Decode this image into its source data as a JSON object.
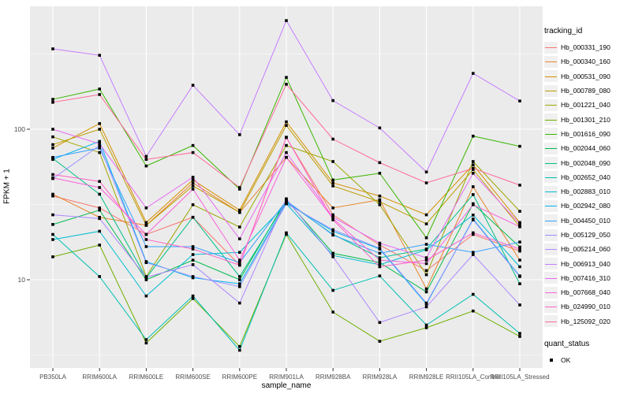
{
  "figure": {
    "background": "#FFFFFF",
    "panel_bg": "#EBEBEB",
    "grid_color": "#FFFFFF",
    "tick_text_color": "#4D4D4D",
    "tick_mark_color": "#333333",
    "point_color": "#000000"
  },
  "chart_data": {
    "type": "line",
    "title": "",
    "xlabel": "sample_name",
    "ylabel": "FPKM + 1",
    "y_scale": "log10",
    "y_ticks": [
      "10",
      "100"
    ],
    "y_tick_values": [
      10,
      100
    ],
    "ylim": [
      3,
      600
    ],
    "grid": true,
    "legend_position": "right",
    "legend_title": "tracking_id",
    "legend2_title": "quant_status",
    "legend2_items": [
      "OK"
    ],
    "point_shape": "square",
    "categories": [
      "PB350LA",
      "RRIM600LA",
      "RRIM600LE",
      "RRIM600SE",
      "RRIM600PE",
      "RRIM901LA",
      "RRIM928BA",
      "RRIM928LA",
      "RRIM928LE",
      "RRII105LA_Control",
      "RRII105LA_Stressed"
    ],
    "series": [
      {
        "name": "Hb_000331_190",
        "color": "#F8766D",
        "values": [
          36,
          30,
          20,
          26,
          12.5,
          88,
          27,
          17,
          11.5,
          20,
          15.5
        ]
      },
      {
        "name": "Hb_000340_160",
        "color": "#E9842C",
        "values": [
          37,
          26,
          23,
          44,
          28,
          65,
          30,
          34,
          8.7,
          41.5,
          13.5
        ]
      },
      {
        "name": "Hb_000531_090",
        "color": "#D69100",
        "values": [
          75,
          109,
          24,
          46,
          29,
          112,
          44,
          36,
          27,
          58,
          24
        ]
      },
      {
        "name": "Hb_000789_080",
        "color": "#BC9D00",
        "values": [
          79,
          100,
          23,
          42,
          28,
          106,
          42,
          33,
          23.5,
          54,
          22.5
        ]
      },
      {
        "name": "Hb_001221_040",
        "color": "#9CA700",
        "values": [
          89,
          70,
          10.5,
          31.5,
          22.4,
          78,
          61,
          31.5,
          10.8,
          61,
          28.5
        ]
      },
      {
        "name": "Hb_001301_210",
        "color": "#6FB000",
        "values": [
          14.2,
          17,
          3.8,
          7.5,
          3.6,
          20,
          6.1,
          3.9,
          4.8,
          6.2,
          4.2
        ]
      },
      {
        "name": "Hb_001616_090",
        "color": "#39B600",
        "values": [
          158,
          185,
          57,
          78,
          40,
          221,
          46,
          51,
          19,
          90,
          77
        ]
      },
      {
        "name": "Hb_002044_060",
        "color": "#00BB4E",
        "values": [
          23.3,
          29,
          10,
          13.5,
          10,
          34,
          15,
          13,
          8.3,
          32,
          16.5
        ]
      },
      {
        "name": "Hb_002048_090",
        "color": "#00C087",
        "values": [
          64,
          37,
          10.3,
          26,
          10.5,
          33,
          20,
          14,
          16,
          36.8,
          9.4
        ]
      },
      {
        "name": "Hb_002652_040",
        "color": "#00C0B2",
        "values": [
          20,
          10.5,
          4.0,
          7.8,
          3.4,
          20.5,
          8.5,
          10.6,
          5.0,
          8.0,
          4.4
        ]
      },
      {
        "name": "Hb_002883_010",
        "color": "#00BDD2",
        "values": [
          18.5,
          21,
          7.8,
          14.7,
          15.2,
          32,
          14.5,
          12.6,
          15.8,
          26.9,
          12.2
        ]
      },
      {
        "name": "Hb_002942_080",
        "color": "#00B4EF",
        "values": [
          63,
          83,
          13.2,
          10.3,
          9.4,
          32.5,
          21,
          16,
          6.9,
          25.3,
          10.6
        ]
      },
      {
        "name": "Hb_004450_010",
        "color": "#35A2FF",
        "values": [
          65,
          75,
          16.6,
          16.6,
          13,
          33.5,
          19.8,
          15,
          17.2,
          15.2,
          17.8
        ]
      },
      {
        "name": "Hb_005129_050",
        "color": "#9590FF",
        "values": [
          47,
          78,
          13.0,
          10.5,
          9.0,
          32,
          21.5,
          16.2,
          7.0,
          25.0,
          10.5
        ]
      },
      {
        "name": "Hb_005214_060",
        "color": "#AE87FF",
        "values": [
          27,
          25.5,
          10.4,
          12.6,
          7.0,
          34.5,
          14.2,
          5.2,
          6.6,
          14.7,
          6.8
        ]
      },
      {
        "name": "Hb_006913_040",
        "color": "#C77CFF",
        "values": [
          342,
          310,
          66,
          196,
          92,
          527,
          155,
          102,
          52,
          235,
          154
        ]
      },
      {
        "name": "Hb_007416_310",
        "color": "#E76BF3",
        "values": [
          100,
          80,
          30,
          48,
          18.7,
          70,
          26,
          17.5,
          14,
          51,
          23.5
        ]
      },
      {
        "name": "Hb_007668_040",
        "color": "#FA62DB",
        "values": [
          47.5,
          41,
          20,
          40,
          13.5,
          65,
          25.5,
          13.5,
          12.8,
          31.5,
          22.5
        ]
      },
      {
        "name": "Hb_024990_010",
        "color": "#FF61C9",
        "values": [
          50,
          45,
          18.5,
          16,
          12.5,
          88.5,
          25,
          12.2,
          13.5,
          20.5,
          16
        ]
      },
      {
        "name": "Hb_125092_020",
        "color": "#FF6A98",
        "values": [
          151,
          170,
          63,
          70,
          41,
          199,
          86,
          60,
          44,
          55,
          42.5
        ]
      }
    ]
  }
}
